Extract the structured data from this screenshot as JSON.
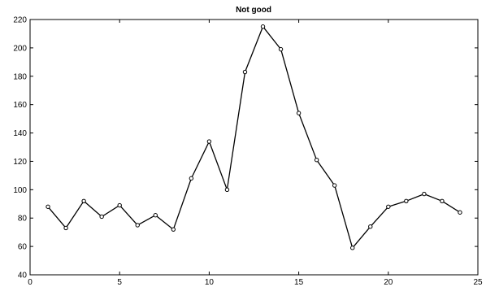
{
  "chart_data": {
    "type": "line",
    "title": "Not good",
    "xlabel": "",
    "ylabel": "",
    "xlim": [
      0,
      25
    ],
    "ylim": [
      40,
      220
    ],
    "grid": false,
    "legend": "none",
    "x_ticks": [
      "0",
      "5",
      "10",
      "15",
      "20",
      "25"
    ],
    "y_ticks": [
      "40",
      "60",
      "80",
      "100",
      "120",
      "140",
      "160",
      "180",
      "200",
      "220"
    ],
    "series": [
      {
        "marker": "circle",
        "color": "#000000",
        "x": [
          1,
          2,
          3,
          4,
          5,
          6,
          7,
          8,
          9,
          10,
          11,
          12,
          13,
          14,
          15,
          16,
          17,
          18,
          19,
          20,
          21,
          22,
          23,
          24
        ],
        "y": [
          88,
          73,
          92,
          81,
          89,
          75,
          82,
          72,
          108,
          134,
          100,
          183,
          215,
          199,
          154,
          121,
          103,
          59,
          74,
          88,
          92,
          97,
          92,
          84
        ]
      }
    ]
  }
}
